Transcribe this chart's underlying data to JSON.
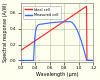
{
  "title": "",
  "xlabel": "Wavelength (μm)",
  "ylabel": "Spectral response (A/W)",
  "xlim": [
    0.2,
    1.2
  ],
  "ylim": [
    -0.02,
    0.72
  ],
  "yticks": [
    0.0,
    0.2,
    0.4,
    0.6
  ],
  "xticks": [
    0.2,
    0.4,
    0.6,
    0.8,
    1.0,
    1.2
  ],
  "ideal_color": "#ff2222",
  "measured_color": "#3366ff",
  "background_color": "#fffff0",
  "plot_bg_color": "#fffff0",
  "legend_labels": [
    "Ideal cell",
    "Measured cell"
  ],
  "grid_color": "#bbbb99",
  "figsize": [
    1.0,
    0.8
  ],
  "dpi": 100
}
